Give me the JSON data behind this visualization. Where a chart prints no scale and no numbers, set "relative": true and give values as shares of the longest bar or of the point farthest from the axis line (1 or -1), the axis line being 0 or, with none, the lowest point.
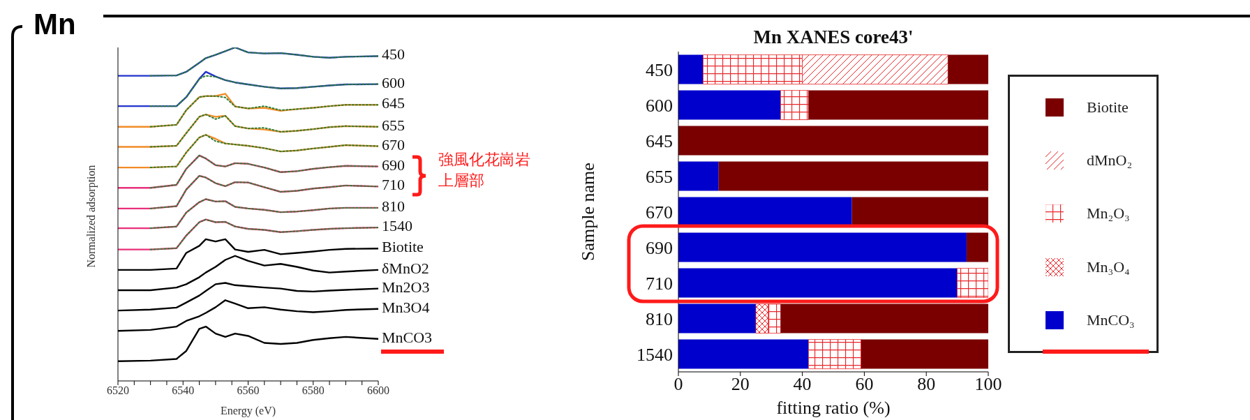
{
  "chart_data": [
    {
      "type": "line",
      "xlabel": "Energy (eV)",
      "ylabel": "Normalized adsorption",
      "relative": true,
      "marker": "none",
      "line_style": "solid",
      "xlim": [
        6520,
        6600
      ],
      "xticks": [
        6520,
        {
          "value": 6525,
          "label": null
        },
        {
          "value": 6530,
          "label": null
        },
        {
          "value": 6535,
          "label": null
        },
        6540,
        {
          "value": 6545,
          "label": null
        },
        {
          "value": 6550,
          "label": null
        },
        {
          "value": 6555,
          "label": null
        },
        6560,
        {
          "value": 6565,
          "label": null
        },
        {
          "value": 6570,
          "label": null
        },
        {
          "value": 6575,
          "label": null
        },
        6580,
        {
          "value": 6585,
          "label": null
        },
        {
          "value": 6590,
          "label": null
        },
        {
          "value": 6595,
          "label": null
        },
        6600
      ],
      "annotations": [
        "Mn",
        "強風化花崗岩上層部"
      ],
      "x": [
        6520,
        6530,
        6538,
        6541,
        6545,
        6547,
        6550,
        6553,
        6556,
        6560,
        6565,
        6570,
        6575,
        6580,
        6585,
        6590,
        6600
      ],
      "series": [
        {
          "name": "450",
          "color": "#2233cc",
          "values": [
            0.915,
            0.915,
            0.916,
            0.927,
            0.954,
            0.968,
            0.978,
            0.989,
            1,
            0.985,
            0.982,
            0.983,
            0.978,
            0.972,
            0.969,
            0.972,
            0.974
          ]
        },
        {
          "color": "#2e7d32",
          "line_style": "dotted",
          "x": [
            6530,
            6538,
            6541,
            6545,
            6547,
            6550,
            6553,
            6556,
            6560,
            6565,
            6570,
            6575,
            6580,
            6585,
            6590,
            6600
          ],
          "values": [
            0.915,
            0.916,
            0.927,
            0.954,
            0.968,
            0.978,
            0.989,
            1,
            0.985,
            0.982,
            0.983,
            0.978,
            0.972,
            0.969,
            0.972,
            0.974
          ]
        },
        {
          "name": "600",
          "color": "#2233cc",
          "values": [
            0.824,
            0.824,
            0.824,
            0.851,
            0.906,
            0.927,
            0.913,
            0.902,
            0.895,
            0.889,
            0.882,
            0.877,
            0.878,
            0.882,
            0.886,
            0.889,
            0.89
          ]
        },
        {
          "color": "#2e7d32",
          "line_style": "dotted",
          "x": [
            6530,
            6538,
            6541,
            6545,
            6547,
            6550,
            6553,
            6556,
            6560,
            6565,
            6570,
            6575,
            6580,
            6585,
            6590,
            6600
          ],
          "values": [
            0.824,
            0.824,
            0.851,
            0.906,
            0.915,
            0.912,
            0.902,
            0.895,
            0.889,
            0.882,
            0.877,
            0.878,
            0.882,
            0.886,
            0.889,
            0.89
          ]
        },
        {
          "name": "645",
          "color": "#f28c28",
          "values": [
            0.762,
            0.762,
            0.768,
            0.812,
            0.851,
            0.854,
            0.854,
            0.861,
            0.823,
            0.817,
            0.819,
            0.81,
            0.815,
            0.819,
            0.824,
            0.828,
            0.828
          ]
        },
        {
          "color": "#2e7d32",
          "line_style": "dotted",
          "x": [
            6530,
            6538,
            6541,
            6545,
            6547,
            6550,
            6553,
            6556,
            6560,
            6565,
            6570,
            6575,
            6580,
            6585,
            6590,
            6600
          ],
          "values": [
            0.762,
            0.768,
            0.812,
            0.851,
            0.854,
            0.854,
            0.85,
            0.823,
            0.817,
            0.824,
            0.812,
            0.815,
            0.819,
            0.824,
            0.828,
            0.828
          ]
        },
        {
          "name": "655",
          "color": "#f28c28",
          "values": [
            0.702,
            0.702,
            0.705,
            0.743,
            0.792,
            0.799,
            0.792,
            0.795,
            0.764,
            0.757,
            0.754,
            0.747,
            0.75,
            0.755,
            0.761,
            0.764,
            0.762
          ]
        },
        {
          "color": "#2e7d32",
          "line_style": "dotted",
          "x": [
            6530,
            6538,
            6541,
            6545,
            6547,
            6550,
            6553,
            6556,
            6560,
            6565,
            6570,
            6575,
            6580,
            6585,
            6590,
            6600
          ],
          "values": [
            0.702,
            0.705,
            0.743,
            0.792,
            0.799,
            0.785,
            0.795,
            0.764,
            0.757,
            0.759,
            0.747,
            0.75,
            0.755,
            0.761,
            0.764,
            0.762
          ]
        },
        {
          "name": "670",
          "color": "#f28c28",
          "values": [
            0.64,
            0.64,
            0.643,
            0.685,
            0.73,
            0.738,
            0.726,
            0.712,
            0.709,
            0.705,
            0.698,
            0.688,
            0.691,
            0.697,
            0.702,
            0.707,
            0.704
          ]
        },
        {
          "color": "#2e7d32",
          "line_style": "dotted",
          "x": [
            6530,
            6538,
            6541,
            6545,
            6547,
            6550,
            6553,
            6556,
            6560,
            6565,
            6570,
            6575,
            6580,
            6585,
            6590,
            6600
          ],
          "values": [
            0.64,
            0.643,
            0.685,
            0.73,
            0.738,
            0.719,
            0.712,
            0.709,
            0.705,
            0.698,
            0.688,
            0.691,
            0.697,
            0.702,
            0.707,
            0.704
          ]
        },
        {
          "name": "690",
          "color": "#e8307a",
          "values": [
            0.579,
            0.579,
            0.588,
            0.636,
            0.676,
            0.667,
            0.647,
            0.643,
            0.653,
            0.651,
            0.64,
            0.626,
            0.629,
            0.636,
            0.641,
            0.645,
            0.643
          ]
        },
        {
          "color": "#2e7d32",
          "line_style": "dotted",
          "x": [
            6530,
            6538,
            6541,
            6545,
            6547,
            6550,
            6553,
            6556,
            6560,
            6565,
            6570,
            6575,
            6580,
            6585,
            6590,
            6600
          ],
          "values": [
            0.579,
            0.588,
            0.636,
            0.676,
            0.667,
            0.647,
            0.643,
            0.653,
            0.651,
            0.64,
            0.626,
            0.629,
            0.636,
            0.641,
            0.645,
            0.643
          ]
        },
        {
          "name": "710",
          "color": "#e8307a",
          "values": [
            0.517,
            0.517,
            0.524,
            0.574,
            0.615,
            0.61,
            0.593,
            0.584,
            0.596,
            0.595,
            0.581,
            0.567,
            0.57,
            0.577,
            0.581,
            0.586,
            0.583
          ]
        },
        {
          "color": "#2e7d32",
          "line_style": "dotted",
          "x": [
            6530,
            6538,
            6541,
            6545,
            6547,
            6550,
            6553,
            6556,
            6560,
            6565,
            6570,
            6575,
            6580,
            6585,
            6590,
            6600
          ],
          "values": [
            0.517,
            0.524,
            0.574,
            0.615,
            0.61,
            0.593,
            0.584,
            0.596,
            0.595,
            0.581,
            0.567,
            0.57,
            0.577,
            0.581,
            0.586,
            0.583
          ]
        },
        {
          "name": "810",
          "color": "#e8307a",
          "values": [
            0.458,
            0.458,
            0.463,
            0.505,
            0.536,
            0.545,
            0.538,
            0.539,
            0.522,
            0.517,
            0.513,
            0.506,
            0.508,
            0.512,
            0.517,
            0.519,
            0.519
          ]
        },
        {
          "color": "#2e7d32",
          "line_style": "dotted",
          "x": [
            6530,
            6538,
            6541,
            6545,
            6547,
            6550,
            6553,
            6556,
            6560,
            6565,
            6570,
            6575,
            6580,
            6585,
            6590,
            6600
          ],
          "values": [
            0.458,
            0.463,
            0.505,
            0.536,
            0.545,
            0.538,
            0.539,
            0.522,
            0.517,
            0.513,
            0.506,
            0.508,
            0.512,
            0.517,
            0.519,
            0.519
          ]
        },
        {
          "name": "1540",
          "color": "#e8307a",
          "values": [
            0.394,
            0.394,
            0.398,
            0.436,
            0.476,
            0.484,
            0.476,
            0.477,
            0.463,
            0.456,
            0.453,
            0.446,
            0.449,
            0.453,
            0.456,
            0.458,
            0.46
          ]
        },
        {
          "color": "#2e7d32",
          "line_style": "dotted",
          "x": [
            6530,
            6538,
            6541,
            6545,
            6547,
            6550,
            6553,
            6556,
            6560,
            6565,
            6570,
            6575,
            6580,
            6585,
            6590,
            6600
          ],
          "values": [
            0.394,
            0.398,
            0.436,
            0.476,
            0.484,
            0.476,
            0.477,
            0.463,
            0.456,
            0.453,
            0.446,
            0.449,
            0.453,
            0.456,
            0.458,
            0.46
          ]
        },
        {
          "name": "Biotite",
          "color": "#000000",
          "values": [
            0.333,
            0.333,
            0.337,
            0.384,
            0.405,
            0.425,
            0.418,
            0.425,
            0.394,
            0.387,
            0.393,
            0.38,
            0.384,
            0.388,
            0.393,
            0.396,
            0.397
          ]
        },
        {
          "name": "δMnO2",
          "color": "#000000",
          "values": [
            0.272,
            0.272,
            0.28,
            0.29,
            0.311,
            0.325,
            0.342,
            0.363,
            0.375,
            0.36,
            0.346,
            0.351,
            0.342,
            0.331,
            0.325,
            0.328,
            0.333
          ]
        },
        {
          "name": "Mn2O3",
          "color": "#000000",
          "values": [
            0.211,
            0.214,
            0.22,
            0.235,
            0.256,
            0.27,
            0.29,
            0.294,
            0.287,
            0.284,
            0.28,
            0.277,
            0.27,
            0.268,
            0.271,
            0.273,
            0.277
          ]
        },
        {
          "name": "Mn3O4",
          "color": "#000000",
          "values": [
            0.15,
            0.153,
            0.163,
            0.18,
            0.194,
            0.204,
            0.221,
            0.242,
            0.232,
            0.218,
            0.221,
            0.214,
            0.209,
            0.206,
            0.209,
            0.213,
            0.216
          ]
        },
        {
          "name": "MnCO3",
          "color": "#000000",
          "values": [
            0.059,
            0.061,
            0.066,
            0.09,
            0.156,
            0.163,
            0.142,
            0.132,
            0.142,
            0.135,
            0.114,
            0.111,
            0.114,
            0.123,
            0.128,
            0.132,
            0.126
          ]
        }
      ]
    },
    {
      "type": "bar",
      "orientation": "horizontal",
      "stacked": true,
      "title": "Mn XANES core43'",
      "xlabel": "fitting ratio (%)",
      "ylabel": "Sample name",
      "legend": "right",
      "categories": [
        "450",
        "600",
        "645",
        "655",
        "670",
        "690",
        "710",
        "810",
        "1540"
      ],
      "xlim": [
        0,
        100
      ],
      "xticks": [
        0,
        20,
        40,
        60,
        80,
        100
      ],
      "series": [
        {
          "name": "MnCO₃",
          "color": "#0000cc",
          "values": [
            8,
            33,
            0,
            13,
            56,
            93,
            90,
            25,
            42
          ]
        },
        {
          "name": "Mn₃O₄",
          "color": "#e8262a",
          "values": [
            0,
            0,
            0,
            0,
            0,
            0,
            0,
            4,
            0
          ]
        },
        {
          "name": "Mn₂O₃",
          "color": "#e8262a",
          "values": [
            32,
            9,
            0,
            0,
            0,
            0,
            10,
            4,
            17
          ]
        },
        {
          "name": "dMnO₂",
          "color": "#e8262a",
          "values": [
            47,
            0,
            0,
            0,
            0,
            0,
            0,
            0,
            0
          ]
        },
        {
          "name": "Biotite",
          "color": "#7a0000",
          "values": [
            13,
            58,
            100,
            87,
            44,
            7,
            0,
            67,
            41
          ]
        }
      ]
    }
  ]
}
